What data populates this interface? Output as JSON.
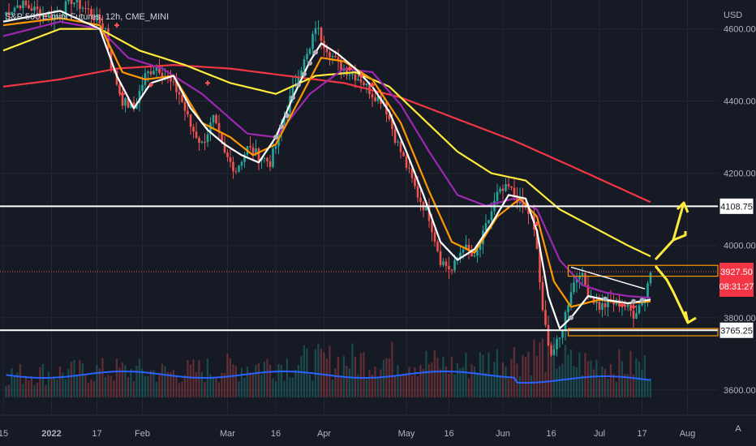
{
  "chart_data": {
    "type": "candlestick",
    "title": "S&P 500 E-mini Futures, 12h, CME_MINI",
    "currency": "USD",
    "ylim": [
      3530,
      4680
    ],
    "y_ticks": [
      4600.0,
      4400.0,
      4200.0,
      4000.0,
      3800.0,
      3600.0
    ],
    "x_ticks": [
      {
        "label": "15",
        "i": 0
      },
      {
        "label": "2022",
        "i": 17
      },
      {
        "label": "17",
        "i": 33
      },
      {
        "label": "Feb",
        "i": 49
      },
      {
        "label": "Mar",
        "i": 79
      },
      {
        "label": "16",
        "i": 96
      },
      {
        "label": "Apr",
        "i": 113
      },
      {
        "label": "May",
        "i": 142
      },
      {
        "label": "16",
        "i": 157
      },
      {
        "label": "Jun",
        "i": 176
      },
      {
        "label": "16",
        "i": 193
      },
      {
        "label": "Jul",
        "i": 210
      },
      {
        "label": "17",
        "i": 225
      },
      {
        "label": "Aug",
        "i": 241
      }
    ],
    "bar_count": 228,
    "price_anchors": [
      [
        0,
        4640
      ],
      [
        6,
        4670
      ],
      [
        12,
        4650
      ],
      [
        18,
        4630
      ],
      [
        24,
        4680
      ],
      [
        30,
        4650
      ],
      [
        36,
        4600
      ],
      [
        38,
        4500
      ],
      [
        42,
        4400
      ],
      [
        46,
        4380
      ],
      [
        50,
        4470
      ],
      [
        54,
        4500
      ],
      [
        58,
        4460
      ],
      [
        62,
        4420
      ],
      [
        66,
        4330
      ],
      [
        70,
        4280
      ],
      [
        74,
        4350
      ],
      [
        78,
        4250
      ],
      [
        82,
        4210
      ],
      [
        86,
        4270
      ],
      [
        90,
        4250
      ],
      [
        94,
        4230
      ],
      [
        97,
        4300
      ],
      [
        100,
        4380
      ],
      [
        104,
        4480
      ],
      [
        108,
        4540
      ],
      [
        110,
        4610
      ],
      [
        113,
        4560
      ],
      [
        118,
        4500
      ],
      [
        122,
        4480
      ],
      [
        126,
        4460
      ],
      [
        130,
        4420
      ],
      [
        134,
        4400
      ],
      [
        138,
        4300
      ],
      [
        142,
        4220
      ],
      [
        146,
        4140
      ],
      [
        150,
        4080
      ],
      [
        154,
        3960
      ],
      [
        158,
        3930
      ],
      [
        162,
        4000
      ],
      [
        166,
        3960
      ],
      [
        170,
        4050
      ],
      [
        174,
        4140
      ],
      [
        178,
        4160
      ],
      [
        182,
        4120
      ],
      [
        186,
        4080
      ],
      [
        188,
        3990
      ],
      [
        190,
        3810
      ],
      [
        193,
        3700
      ],
      [
        196,
        3740
      ],
      [
        200,
        3880
      ],
      [
        203,
        3930
      ],
      [
        206,
        3870
      ],
      [
        210,
        3830
      ],
      [
        214,
        3840
      ],
      [
        218,
        3840
      ],
      [
        222,
        3810
      ],
      [
        226,
        3860
      ],
      [
        228,
        3930
      ]
    ],
    "volume_anchors": [
      [
        0,
        30
      ],
      [
        40,
        35
      ],
      [
        60,
        32
      ],
      [
        100,
        45
      ],
      [
        140,
        50
      ],
      [
        160,
        40
      ],
      [
        190,
        60
      ],
      [
        200,
        45
      ],
      [
        228,
        40
      ]
    ],
    "moving_averages": [
      {
        "color": "#ffffff",
        "anchors": [
          [
            0,
            4620
          ],
          [
            20,
            4650
          ],
          [
            34,
            4600
          ],
          [
            40,
            4470
          ],
          [
            46,
            4380
          ],
          [
            52,
            4450
          ],
          [
            60,
            4470
          ],
          [
            66,
            4380
          ],
          [
            72,
            4320
          ],
          [
            78,
            4280
          ],
          [
            84,
            4250
          ],
          [
            90,
            4230
          ],
          [
            96,
            4300
          ],
          [
            102,
            4410
          ],
          [
            108,
            4510
          ],
          [
            112,
            4560
          ],
          [
            118,
            4530
          ],
          [
            124,
            4490
          ],
          [
            130,
            4440
          ],
          [
            136,
            4370
          ],
          [
            142,
            4260
          ],
          [
            148,
            4140
          ],
          [
            154,
            4010
          ],
          [
            160,
            3960
          ],
          [
            166,
            3990
          ],
          [
            172,
            4060
          ],
          [
            178,
            4140
          ],
          [
            184,
            4130
          ],
          [
            188,
            4040
          ],
          [
            192,
            3860
          ],
          [
            196,
            3770
          ],
          [
            200,
            3800
          ],
          [
            206,
            3860
          ],
          [
            212,
            3850
          ],
          [
            220,
            3840
          ],
          [
            228,
            3850
          ]
        ]
      },
      {
        "color": "#ff9800",
        "anchors": [
          [
            0,
            4610
          ],
          [
            20,
            4630
          ],
          [
            34,
            4610
          ],
          [
            42,
            4480
          ],
          [
            50,
            4460
          ],
          [
            60,
            4470
          ],
          [
            70,
            4340
          ],
          [
            80,
            4300
          ],
          [
            88,
            4250
          ],
          [
            96,
            4280
          ],
          [
            104,
            4400
          ],
          [
            112,
            4520
          ],
          [
            120,
            4510
          ],
          [
            130,
            4460
          ],
          [
            140,
            4340
          ],
          [
            150,
            4150
          ],
          [
            158,
            4010
          ],
          [
            166,
            3980
          ],
          [
            174,
            4080
          ],
          [
            182,
            4130
          ],
          [
            188,
            4080
          ],
          [
            194,
            3900
          ],
          [
            200,
            3830
          ],
          [
            210,
            3850
          ],
          [
            220,
            3840
          ],
          [
            228,
            3845
          ]
        ]
      },
      {
        "color": "#9c27b0",
        "anchors": [
          [
            0,
            4580
          ],
          [
            20,
            4620
          ],
          [
            34,
            4600
          ],
          [
            44,
            4520
          ],
          [
            56,
            4490
          ],
          [
            70,
            4420
          ],
          [
            86,
            4310
          ],
          [
            96,
            4300
          ],
          [
            108,
            4420
          ],
          [
            120,
            4490
          ],
          [
            130,
            4480
          ],
          [
            140,
            4390
          ],
          [
            150,
            4260
          ],
          [
            160,
            4140
          ],
          [
            170,
            4110
          ],
          [
            180,
            4130
          ],
          [
            188,
            4100
          ],
          [
            196,
            3960
          ],
          [
            204,
            3890
          ],
          [
            212,
            3870
          ],
          [
            220,
            3860
          ],
          [
            228,
            3855
          ]
        ]
      },
      {
        "color": "#ffeb3b",
        "anchors": [
          [
            0,
            4540
          ],
          [
            20,
            4600
          ],
          [
            34,
            4600
          ],
          [
            48,
            4540
          ],
          [
            64,
            4500
          ],
          [
            80,
            4450
          ],
          [
            96,
            4420
          ],
          [
            110,
            4470
          ],
          [
            124,
            4480
          ],
          [
            136,
            4440
          ],
          [
            148,
            4350
          ],
          [
            160,
            4260
          ],
          [
            172,
            4200
          ],
          [
            184,
            4180
          ],
          [
            196,
            4100
          ],
          [
            208,
            4050
          ],
          [
            220,
            4000
          ],
          [
            228,
            3970
          ]
        ]
      },
      {
        "color": "#f23645",
        "anchors": [
          [
            0,
            4440
          ],
          [
            20,
            4460
          ],
          [
            40,
            4490
          ],
          [
            60,
            4500
          ],
          [
            80,
            4490
          ],
          [
            100,
            4470
          ],
          [
            120,
            4450
          ],
          [
            140,
            4410
          ],
          [
            160,
            4350
          ],
          [
            180,
            4290
          ],
          [
            200,
            4220
          ],
          [
            228,
            4120
          ]
        ]
      },
      {
        "color": "#2962ff",
        "anchors": []
      }
    ],
    "horizontal_levels": [
      {
        "label": "4108.75",
        "value": 4108.75
      },
      {
        "label": "3765.25",
        "value": 3765.25
      }
    ],
    "last_price": {
      "label": "3927.50",
      "countdown": "08:31:27",
      "value": 3927.5
    },
    "colors": {
      "up": "#26a69a",
      "down": "#ef5350",
      "bg": "#161a25",
      "grid": "#232735",
      "level": "#ffffff",
      "box": "#ff9800",
      "arrows": "#ffeb3b",
      "volume_ma": "#2962ff"
    }
  },
  "footer": {
    "corner": "A"
  }
}
